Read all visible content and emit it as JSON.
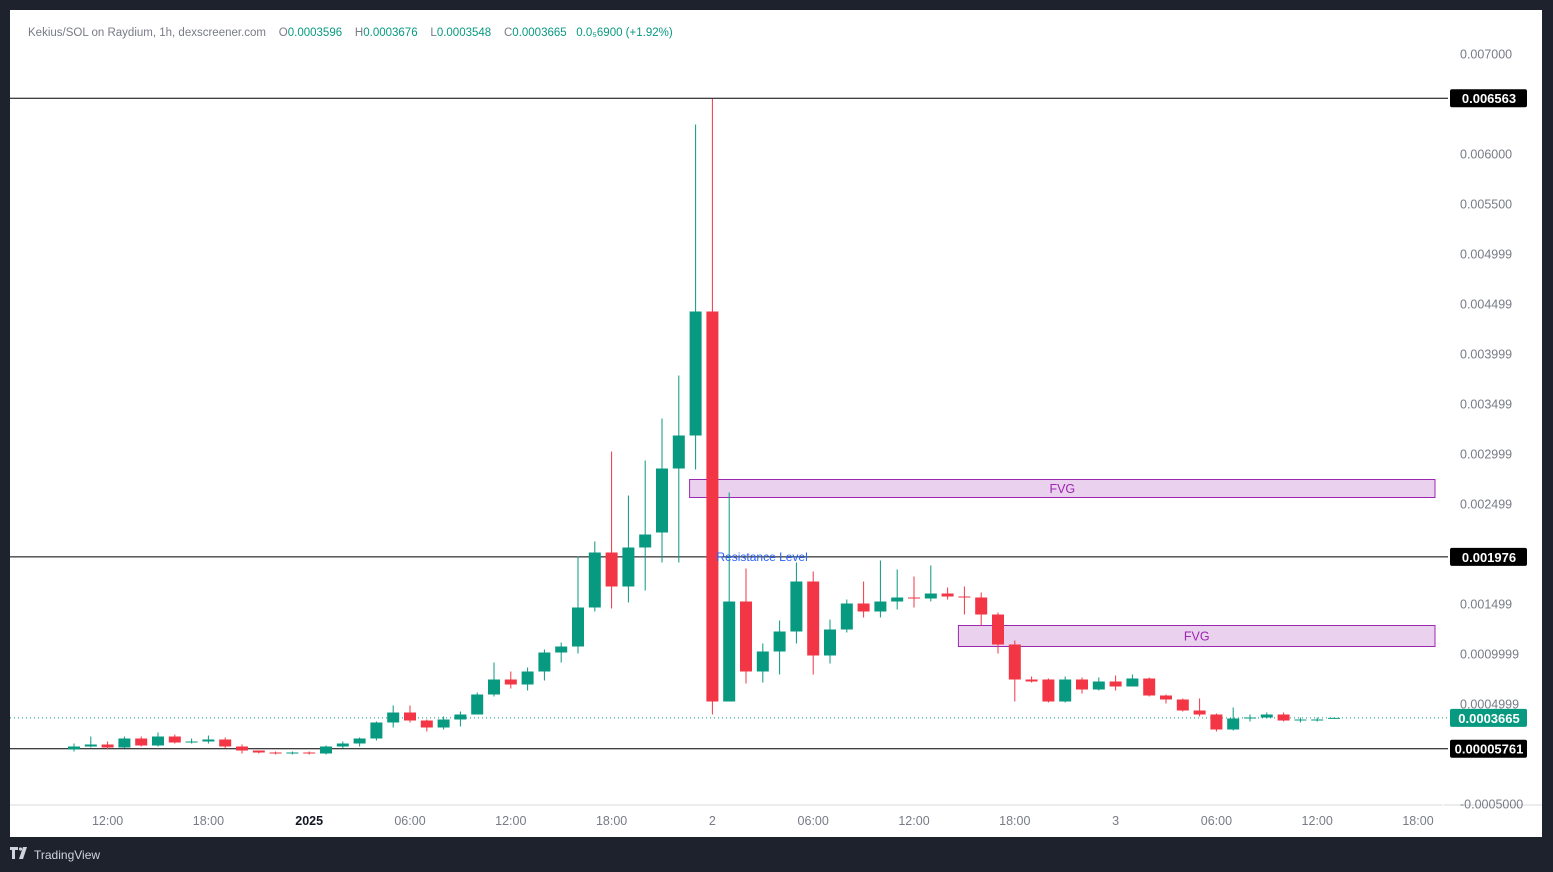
{
  "legend": {
    "title": "Kekius/SOL on Raydium, 1h, dexscreener.com",
    "o_label": "O",
    "o_value": "0.0003596",
    "h_label": "H",
    "h_value": "0.0003676",
    "l_label": "L",
    "l_value": "0.0003548",
    "c_label": "C",
    "c_value": "0.0003665",
    "change": "0.0₅6900 (+1.92%)"
  },
  "footer": {
    "brand": "TradingView",
    "logo_icon": "tradingview-logo-icon"
  },
  "colors": {
    "up": "#089981",
    "down": "#f23645",
    "fvg_fill": "#e1bee7",
    "fvg_border": "#9c27b0",
    "line": "#000000",
    "last_price": "#089981"
  },
  "chart_data": {
    "type": "candlestick",
    "title": "Kekius/SOL on Raydium, 1h, dexscreener.com",
    "ylim": [
      -0.0005,
      0.0072
    ],
    "y_ticks": [
      {
        "value": 0.007,
        "label": "0.007000"
      },
      {
        "value": 0.0065,
        "label": "0.006563",
        "hidden": true
      },
      {
        "value": 0.006,
        "label": "0.006000"
      },
      {
        "value": 0.0055,
        "label": "0.005500"
      },
      {
        "value": 0.005,
        "label": "0.004999"
      },
      {
        "value": 0.0045,
        "label": "0.004499"
      },
      {
        "value": 0.004,
        "label": "0.003999"
      },
      {
        "value": 0.0035,
        "label": "0.003499"
      },
      {
        "value": 0.003,
        "label": "0.002999"
      },
      {
        "value": 0.0025,
        "label": "0.002499"
      },
      {
        "value": 0.0015,
        "label": "0.001499"
      },
      {
        "value": 0.001,
        "label": "0.0009999"
      },
      {
        "value": 0.0005,
        "label": "0.0004999"
      },
      {
        "value": -0.0005,
        "label": "-0.0005000"
      }
    ],
    "x_ticks": [
      {
        "index": 2,
        "label": "12:00",
        "bold": false
      },
      {
        "index": 8,
        "label": "18:00",
        "bold": false
      },
      {
        "index": 14,
        "label": "2025",
        "bold": true
      },
      {
        "index": 20,
        "label": "06:00",
        "bold": false
      },
      {
        "index": 26,
        "label": "12:00",
        "bold": false
      },
      {
        "index": 32,
        "label": "18:00",
        "bold": false
      },
      {
        "index": 38,
        "label": "2",
        "bold": false
      },
      {
        "index": 44,
        "label": "06:00",
        "bold": false
      },
      {
        "index": 50,
        "label": "12:00",
        "bold": false
      },
      {
        "index": 56,
        "label": "18:00",
        "bold": false
      },
      {
        "index": 62,
        "label": "3",
        "bold": false
      },
      {
        "index": 68,
        "label": "06:00",
        "bold": false
      },
      {
        "index": 74,
        "label": "12:00",
        "bold": false
      },
      {
        "index": 80,
        "label": "18:00",
        "bold": false
      }
    ],
    "candles": [
      [
        5e-05,
        8e-05,
        3e-05,
        0.00011
      ],
      [
        8e-05,
        0.0001,
        7e-05,
        0.00018
      ],
      [
        0.0001,
        7e-05,
        5e-05,
        0.00013
      ],
      [
        7e-05,
        0.00016,
        6e-05,
        0.00018
      ],
      [
        0.00016,
        9e-05,
        8e-05,
        0.00018
      ],
      [
        9e-05,
        0.00018,
        8e-05,
        0.00022
      ],
      [
        0.00018,
        0.00012,
        0.00011,
        0.0002
      ],
      [
        0.00012,
        0.00013,
        0.00011,
        0.00016
      ],
      [
        0.00013,
        0.00015,
        0.00011,
        0.00019
      ],
      [
        0.00015,
        8e-05,
        6e-05,
        0.00017
      ],
      [
        8e-05,
        4e-05,
        1e-05,
        0.0001
      ],
      [
        4e-05,
        2e-05,
        1e-05,
        4e-05
      ],
      [
        2e-05,
        1e-05,
        0.0,
        3e-05
      ],
      [
        1e-05,
        2e-05,
        0.0,
        3e-05
      ],
      [
        2e-05,
        1e-05,
        0.0,
        3e-05
      ],
      [
        1e-05,
        8e-05,
        0.0,
        9e-05
      ],
      [
        8e-05,
        0.00011,
        6e-05,
        0.00013
      ],
      [
        0.00011,
        0.00016,
        8e-05,
        0.00017
      ],
      [
        0.00016,
        0.00032,
        0.00014,
        0.00033
      ],
      [
        0.00032,
        0.00042,
        0.00027,
        0.00049
      ],
      [
        0.00042,
        0.00034,
        0.00032,
        0.00049
      ],
      [
        0.00034,
        0.00027,
        0.00023,
        0.00035
      ],
      [
        0.00027,
        0.00035,
        0.00025,
        0.00038
      ],
      [
        0.00035,
        0.0004,
        0.00028,
        0.00043
      ],
      [
        0.0004,
        0.0006,
        0.0004,
        0.00062
      ],
      [
        0.0006,
        0.00075,
        0.00058,
        0.00092
      ],
      [
        0.00075,
        0.0007,
        0.00066,
        0.00083
      ],
      [
        0.0007,
        0.00083,
        0.00064,
        0.00087
      ],
      [
        0.00083,
        0.00102,
        0.00074,
        0.00105
      ],
      [
        0.00102,
        0.00108,
        0.00092,
        0.00112
      ],
      [
        0.00108,
        0.00147,
        0.00101,
        0.00198
      ],
      [
        0.00147,
        0.00202,
        0.00143,
        0.00213
      ],
      [
        0.00202,
        0.00168,
        0.00146,
        0.00303
      ],
      [
        0.00168,
        0.00207,
        0.00152,
        0.00259
      ],
      [
        0.00207,
        0.0022,
        0.00164,
        0.00294
      ],
      [
        0.00222,
        0.00286,
        0.00192,
        0.00336
      ],
      [
        0.00286,
        0.00319,
        0.00192,
        0.00379
      ],
      [
        0.00319,
        0.00443,
        0.00285,
        0.0063
      ],
      [
        0.00443,
        0.00053,
        0.0004,
        0.00656
      ],
      [
        0.00053,
        0.00153,
        0.00053,
        0.00262
      ],
      [
        0.00153,
        0.00083,
        0.00071,
        0.00186
      ],
      [
        0.00083,
        0.00103,
        0.00072,
        0.00111
      ],
      [
        0.00103,
        0.00123,
        0.0008,
        0.00134
      ],
      [
        0.00123,
        0.00173,
        0.00111,
        0.00192
      ],
      [
        0.00173,
        0.00099,
        0.0008,
        0.00183
      ],
      [
        0.00099,
        0.00125,
        0.00091,
        0.00135
      ],
      [
        0.00125,
        0.00151,
        0.00122,
        0.00155
      ],
      [
        0.00151,
        0.00143,
        0.00137,
        0.00173
      ],
      [
        0.00143,
        0.00153,
        0.00137,
        0.00194
      ],
      [
        0.00153,
        0.00157,
        0.00145,
        0.00185
      ],
      [
        0.00157,
        0.00156,
        0.00147,
        0.00178
      ],
      [
        0.00156,
        0.00161,
        0.00153,
        0.00189
      ],
      [
        0.00161,
        0.00158,
        0.00155,
        0.00167
      ],
      [
        0.00158,
        0.00157,
        0.0014,
        0.00168
      ],
      [
        0.00157,
        0.0014,
        0.00129,
        0.00162
      ],
      [
        0.0014,
        0.0011,
        0.00101,
        0.00142
      ],
      [
        0.0011,
        0.00075,
        0.00053,
        0.00114
      ],
      [
        0.00075,
        0.00073,
        0.00072,
        0.00078
      ],
      [
        0.00075,
        0.00053,
        0.00052,
        0.00076
      ],
      [
        0.00053,
        0.00075,
        0.00052,
        0.00078
      ],
      [
        0.00075,
        0.00065,
        0.00061,
        0.00077
      ],
      [
        0.00065,
        0.00073,
        0.00064,
        0.00077
      ],
      [
        0.00073,
        0.00068,
        0.00064,
        0.00079
      ],
      [
        0.00068,
        0.00076,
        0.00068,
        0.0008
      ],
      [
        0.00076,
        0.00059,
        0.00058,
        0.00077
      ],
      [
        0.00059,
        0.00055,
        0.00051,
        0.0006
      ],
      [
        0.00055,
        0.00044,
        0.00043,
        0.00056
      ],
      [
        0.00044,
        0.0004,
        0.00038,
        0.00056
      ],
      [
        0.0004,
        0.00025,
        0.00023,
        0.00041
      ],
      [
        0.00025,
        0.00036,
        0.00024,
        0.00047
      ],
      [
        0.00036,
        0.00037,
        0.00033,
        0.0004
      ],
      [
        0.00037,
        0.0004,
        0.00036,
        0.00042
      ],
      [
        0.0004,
        0.00034,
        0.00033,
        0.00042
      ],
      [
        0.00034,
        0.00035,
        0.00032,
        0.00037
      ],
      [
        0.00035,
        0.00035,
        0.00033,
        0.00037
      ],
      [
        0.0003596,
        0.0003665,
        0.0003548,
        0.0003676
      ]
    ],
    "hlines": [
      {
        "value": 0.006563,
        "label": "0.006563",
        "color": "#000000"
      },
      {
        "value": 0.001976,
        "label": "0.001976",
        "color": "#000000"
      },
      {
        "value": 5.761e-05,
        "label": "0.00005761",
        "color": "#000000"
      }
    ],
    "last_price": {
      "value": 0.0003665,
      "label": "0.0003665"
    },
    "zones": [
      {
        "label": "FVG",
        "from_index": 37,
        "to_index": 80,
        "top": 0.00275,
        "bottom": 0.00257
      },
      {
        "label": "FVG",
        "from_index": 53,
        "to_index": 80,
        "top": 0.00129,
        "bottom": 0.00108
      }
    ],
    "annotations": [
      {
        "text": "Resistance Level",
        "index": 38,
        "value": 0.001976,
        "color": "#2962ff"
      }
    ]
  }
}
